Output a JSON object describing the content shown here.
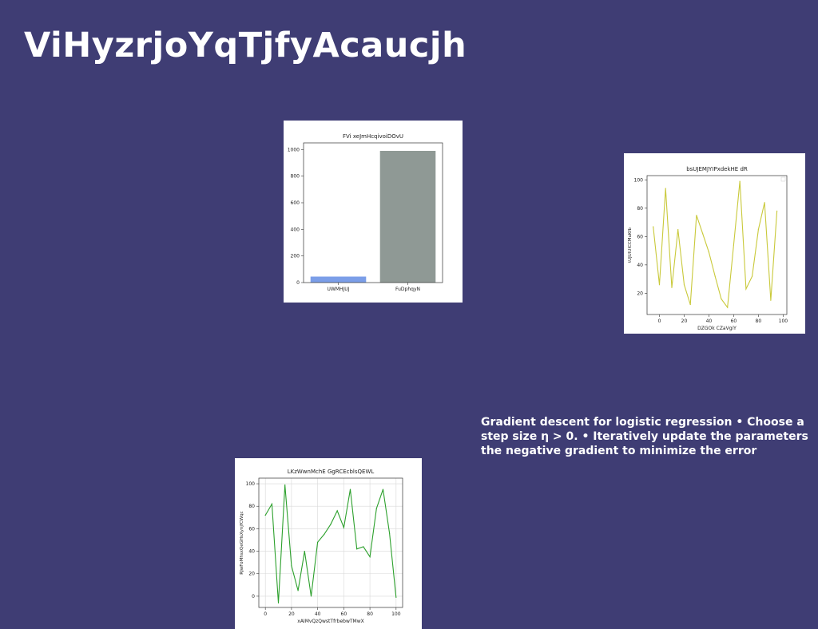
{
  "slide": {
    "title": "ViHyzrjoYqTjfyAcaucjh",
    "body": "Gradient descent for logistic regression • Choose a\nstep size η > 0. • Iteratively update the parameters\nthe negative gradient to minimize the error",
    "background": "#3f3d74"
  },
  "chart_data": [
    {
      "type": "bar",
      "title": "FVi xeJmHcqivoiDOvU",
      "categories": [
        "UWMHJUJ",
        "FuDphqyN"
      ],
      "values": [
        45,
        990
      ],
      "colors": [
        "#7b9ee8",
        "#8f9995"
      ],
      "xlabel": "",
      "ylabel": "",
      "ylim": [
        0,
        1050
      ],
      "yticks": [
        0,
        200,
        400,
        600,
        800,
        1000
      ],
      "grid": false
    },
    {
      "type": "line",
      "title": "bsUJEMJYIPxdekHE dR",
      "xlabel": "DZGOk CZaVgiY",
      "ylabel": "tUJUIUICCMuKfb",
      "x": [
        -5,
        0,
        5,
        10,
        15,
        20,
        25,
        30,
        35,
        40,
        45,
        50,
        55,
        60,
        65,
        70,
        75,
        80,
        85,
        90,
        95
      ],
      "y": [
        67,
        26,
        94,
        24,
        65,
        26,
        12,
        75,
        62,
        49,
        32,
        16,
        10,
        54,
        99,
        23,
        32,
        65,
        84,
        15,
        78
      ],
      "color": "#c9c93a",
      "xlim": [
        -10,
        103
      ],
      "ylim": [
        5,
        103
      ],
      "xticks": [
        0,
        20,
        40,
        60,
        80,
        100
      ],
      "yticks": [
        20,
        40,
        60,
        80,
        100
      ],
      "grid": false,
      "legend": "top-right"
    },
    {
      "type": "line",
      "title": "LKzWwnMchE GgRCEcblsQEWL",
      "xlabel": "xAIMvQzQwstTfrbebwTMwX",
      "ylabel": "RJwFoMhsxQeGHsXynjfCWqc",
      "x": [
        0,
        5,
        10,
        15,
        20,
        25,
        30,
        35,
        40,
        45,
        50,
        55,
        60,
        65,
        70,
        75,
        80,
        85,
        90,
        95,
        100
      ],
      "y": [
        72,
        82,
        -6,
        99,
        27,
        5,
        40,
        0,
        48,
        55,
        64,
        76,
        61,
        95,
        42,
        44,
        35,
        78,
        95,
        56,
        -1
      ],
      "color": "#2ca02c",
      "xlim": [
        -5,
        105
      ],
      "ylim": [
        -10,
        105
      ],
      "xticks": [
        0,
        20,
        40,
        60,
        80,
        100
      ],
      "yticks": [
        0,
        20,
        40,
        60,
        80,
        100
      ],
      "grid": true
    }
  ]
}
